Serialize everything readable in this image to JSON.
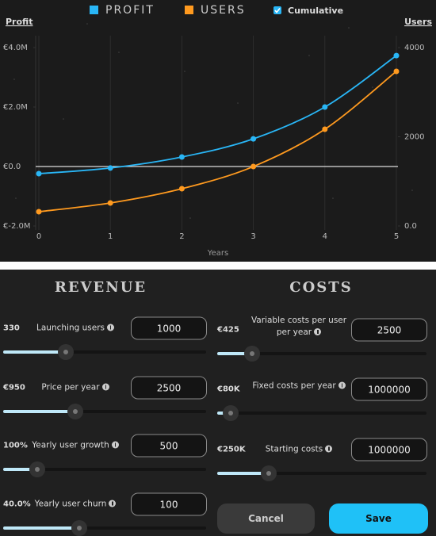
{
  "chart": {
    "type": "line",
    "legend": {
      "cumulative": "Cumulative",
      "checked": true
    },
    "y_label": "Profit",
    "y2_label": "Users",
    "x_label": "Years",
    "x": [
      0,
      1,
      2,
      3,
      4,
      5
    ],
    "xlim": [
      0,
      5
    ],
    "xticks": [
      0,
      1,
      2,
      3,
      4,
      5
    ],
    "ylim": [
      -2000000,
      4000000
    ],
    "yticks": [
      {
        "value": -2000000,
        "label": "€-2.0M"
      },
      {
        "value": 0,
        "label": "€0.0"
      },
      {
        "value": 2000000,
        "label": "€2.0M"
      },
      {
        "value": 4000000,
        "label": "€4.0M"
      }
    ],
    "y2lim": [
      0,
      4000
    ],
    "y2ticks": [
      {
        "value": 0,
        "label": "0.0"
      },
      2000,
      4000
    ],
    "series": [
      {
        "name": "PROFIT",
        "color": "#29b6f6",
        "values": [
          -240000,
          -50000,
          320000,
          930000,
          2000000,
          3730000
        ]
      },
      {
        "name": "USERS",
        "color": "#ff9a1f",
        "axis": "y2",
        "values": [
          320,
          516,
          836,
          1333,
          2169,
          3467
        ]
      }
    ]
  },
  "revenue": {
    "title": "REVENUE",
    "controls": [
      {
        "value": "330",
        "label": "Launching users",
        "input": "1000"
      },
      {
        "value": "€950",
        "label": "Price per year",
        "input": "2500"
      },
      {
        "value": "100%",
        "label": "Yearly user growth",
        "input": "500"
      },
      {
        "value": "40.0%",
        "label": "Yearly user churn",
        "input": "100"
      }
    ]
  },
  "costs": {
    "title": "COSTS",
    "controls": [
      {
        "value": "€425",
        "label": "Variable costs per user per year",
        "input": "2500"
      },
      {
        "value": "€80K",
        "label": "Fixed costs per year",
        "input": "1000000"
      },
      {
        "value": "€250K",
        "label": "Starting costs",
        "input": "1000000"
      }
    ]
  },
  "buttons": {
    "cancel": "Cancel",
    "save": "Save"
  }
}
